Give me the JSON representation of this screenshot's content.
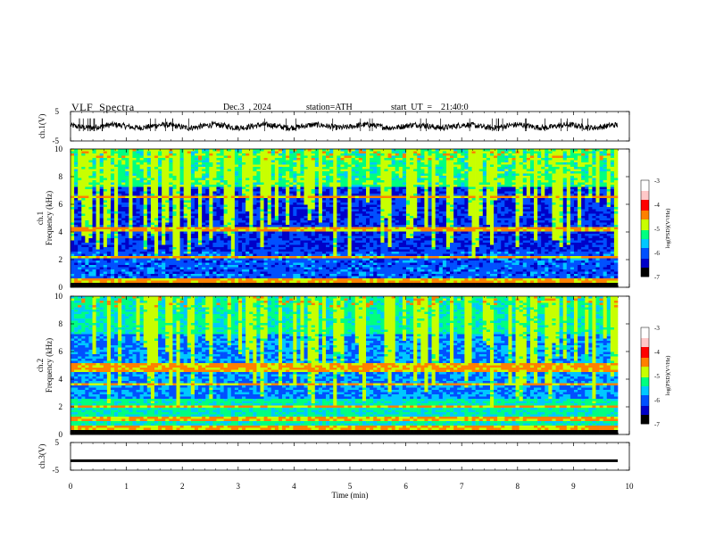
{
  "header": {
    "title": "VLF  Spectra",
    "date": "Dec.3  , 2024",
    "station": "station=ATH",
    "start_ut": "start  UT  =    21:40:0"
  },
  "chart_data": [
    {
      "type": "line",
      "name": "ch1-waveform",
      "ylabel": "ch.1(V)",
      "ylim": [
        -5,
        5
      ],
      "yticks": [
        "5",
        "-5"
      ],
      "xlim": [
        0,
        10
      ],
      "description_values": {
        "baseline_v": 0.0,
        "noise_amplitude_v": 1.2
      }
    },
    {
      "type": "heatmap",
      "name": "ch1-spectrogram",
      "ylabel": "ch.1\nFrequency  (kHz)",
      "ylim": [
        0,
        10
      ],
      "yticks": [
        "0",
        "2",
        "4",
        "6",
        "8",
        "10"
      ],
      "xlim": [
        0,
        9.8
      ],
      "strong_bands_khz": [
        0.3,
        0.5,
        2.2,
        4.2,
        6.5
      ],
      "colorbar": {
        "label": "log(PSD)(V²/Hz)",
        "range": [
          -7,
          -3
        ],
        "ticks": [
          "-3",
          "-4",
          "-5",
          "-6",
          "-7"
        ]
      }
    },
    {
      "type": "heatmap",
      "name": "ch2-spectrogram",
      "ylabel": "ch.2\nFrequency  (kHz)",
      "ylim": [
        0,
        10
      ],
      "yticks": [
        "0",
        "2",
        "4",
        "6",
        "8",
        "10"
      ],
      "xlim": [
        0,
        9.8
      ],
      "strong_bands_khz": [
        0.5,
        1.1,
        2.0,
        3.6,
        4.7,
        5.0
      ],
      "colorbar": {
        "label": "log(PSD)(V²/Hz)",
        "range": [
          -7,
          -3
        ],
        "ticks": [
          "-3",
          "-4",
          "-5",
          "-6",
          "-7"
        ]
      }
    },
    {
      "type": "line",
      "name": "ch3-waveform",
      "ylabel": "ch.3(V)",
      "ylim": [
        -5,
        5
      ],
      "yticks": [
        "5",
        "-5"
      ],
      "xlim": [
        0,
        10
      ],
      "description_values": {
        "baseline_v": -1.5,
        "noise_amplitude_v": 0.2
      }
    }
  ],
  "x_axis": {
    "label": "Time  (min)",
    "ticks": [
      "0",
      "1",
      "2",
      "3",
      "4",
      "5",
      "6",
      "7",
      "8",
      "9",
      "10"
    ]
  },
  "colors": {
    "colormap": [
      "#000000",
      "#0000c8",
      "#0050ff",
      "#00c8ff",
      "#00ff80",
      "#c8ff00",
      "#ff8000",
      "#ff0000",
      "#ffc8c8",
      "#ffffff"
    ]
  }
}
